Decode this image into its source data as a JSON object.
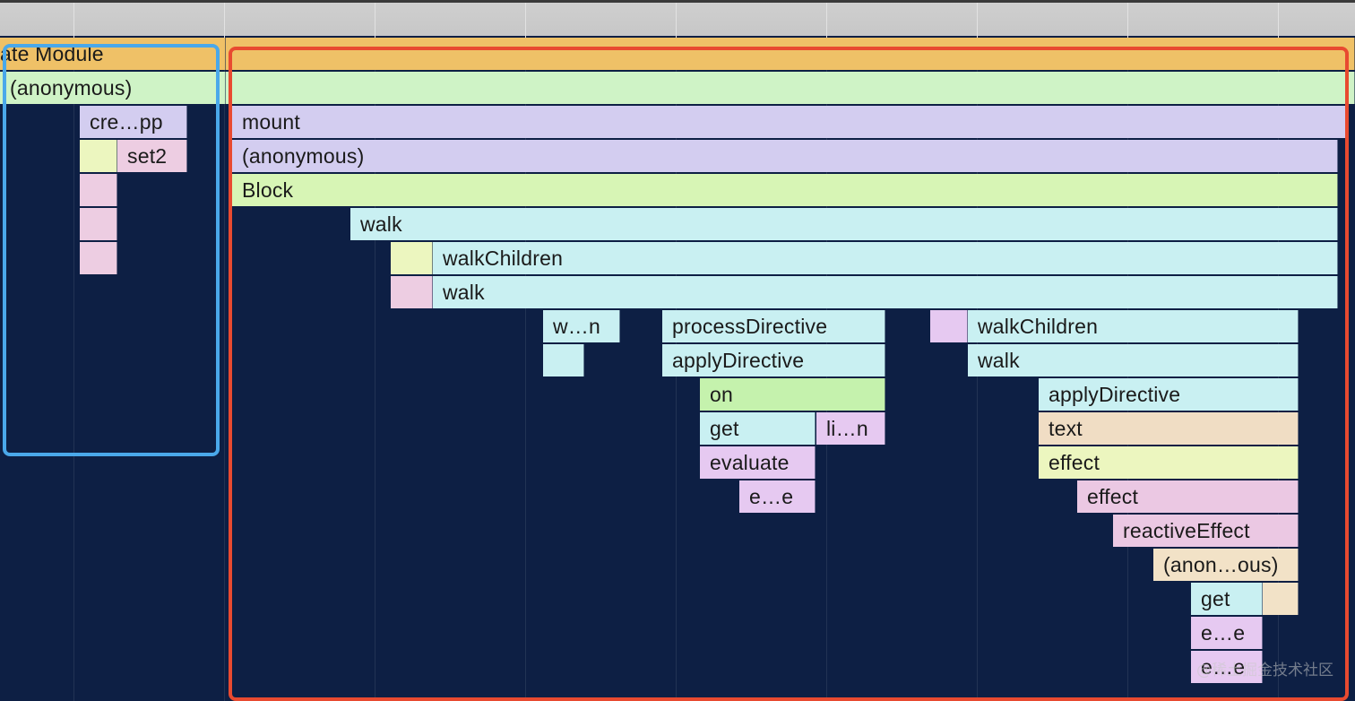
{
  "flame_chart": {
    "frames": [
      {
        "id": "evaluate-module",
        "label": "ate Module",
        "color": "#efc167"
      },
      {
        "id": "anonymous-root-left",
        "label": "(anonymous)",
        "color": "#cff3c6"
      },
      {
        "id": "orange-root-right",
        "label": "",
        "color": "#efc167"
      },
      {
        "id": "anonymous-root-right",
        "label": "",
        "color": "#cff3c6"
      },
      {
        "id": "create-app",
        "label": "cre…pp",
        "color": "#d3cdf0"
      },
      {
        "id": "mount",
        "label": "mount",
        "color": "#d3cdf0"
      },
      {
        "id": "set2-left-slot",
        "label": "",
        "color": "#ecf6bf"
      },
      {
        "id": "set2",
        "label": "set2",
        "color": "#edcde2"
      },
      {
        "id": "anonymous-mount",
        "label": "(anonymous)",
        "color": "#d3cdf0"
      },
      {
        "id": "pink-slot-1",
        "label": "",
        "color": "#edcde2"
      },
      {
        "id": "block",
        "label": "Block",
        "color": "#d7f5b5"
      },
      {
        "id": "pink-slot-2",
        "label": "",
        "color": "#edcde2"
      },
      {
        "id": "walk-1",
        "label": "walk",
        "color": "#c9f0f2"
      },
      {
        "id": "pink-slot-3",
        "label": "",
        "color": "#edcde2"
      },
      {
        "id": "yellow-slot-1",
        "label": "",
        "color": "#ecf6bf"
      },
      {
        "id": "walkchildren-1",
        "label": "walkChildren",
        "color": "#c9f0f2"
      },
      {
        "id": "pink-slot-4",
        "label": "",
        "color": "#edcde2"
      },
      {
        "id": "walk-2",
        "label": "walk",
        "color": "#c9f0f2"
      },
      {
        "id": "w-n",
        "label": "w…n",
        "color": "#c9f0f2"
      },
      {
        "id": "processdirective",
        "label": "processDirective",
        "color": "#c9f0f2"
      },
      {
        "id": "magenta-slot-1",
        "label": "",
        "color": "#e6c9f1"
      },
      {
        "id": "walkchildren-2",
        "label": "walkChildren",
        "color": "#c9f0f2"
      },
      {
        "id": "cyan-slot-1",
        "label": "",
        "color": "#c9f0f2"
      },
      {
        "id": "applydirective-1",
        "label": "applyDirective",
        "color": "#c9f0f2"
      },
      {
        "id": "walk-3",
        "label": "walk",
        "color": "#c9f0f2"
      },
      {
        "id": "on",
        "label": "on",
        "color": "#c5f2ad"
      },
      {
        "id": "applydirective-2",
        "label": "applyDirective",
        "color": "#c9f0f2"
      },
      {
        "id": "get-1",
        "label": "get",
        "color": "#c9f0f2"
      },
      {
        "id": "li-n",
        "label": "li…n",
        "color": "#e6c9f1"
      },
      {
        "id": "text",
        "label": "text",
        "color": "#f0ddc4"
      },
      {
        "id": "evaluate",
        "label": "evaluate",
        "color": "#e6c9f1"
      },
      {
        "id": "effect-1",
        "label": "effect",
        "color": "#ecf6bf"
      },
      {
        "id": "e-e-1",
        "label": "e…e",
        "color": "#e6c9f1"
      },
      {
        "id": "effect-2",
        "label": "effect",
        "color": "#edcde2"
      },
      {
        "id": "reactiveeffect",
        "label": "reactiveEffect",
        "color": "#edcde2"
      },
      {
        "id": "anon-ous",
        "label": "(anon…ous)",
        "color": "#f2e2c7"
      },
      {
        "id": "get-2",
        "label": "get",
        "color": "#c9f0f2"
      },
      {
        "id": "tan-slot-1",
        "label": "",
        "color": "#f2e2c7"
      },
      {
        "id": "e-e-2",
        "label": "e…e",
        "color": "#e6c9f1"
      },
      {
        "id": "e-e-3",
        "label": "e…e",
        "color": "#e6c9f1"
      }
    ]
  },
  "watermark": "@稀土掘金技术社区",
  "colors": {
    "background": "#0d1f44",
    "highlight_blue": "#4aa8ea",
    "highlight_red": "#e84a30"
  }
}
